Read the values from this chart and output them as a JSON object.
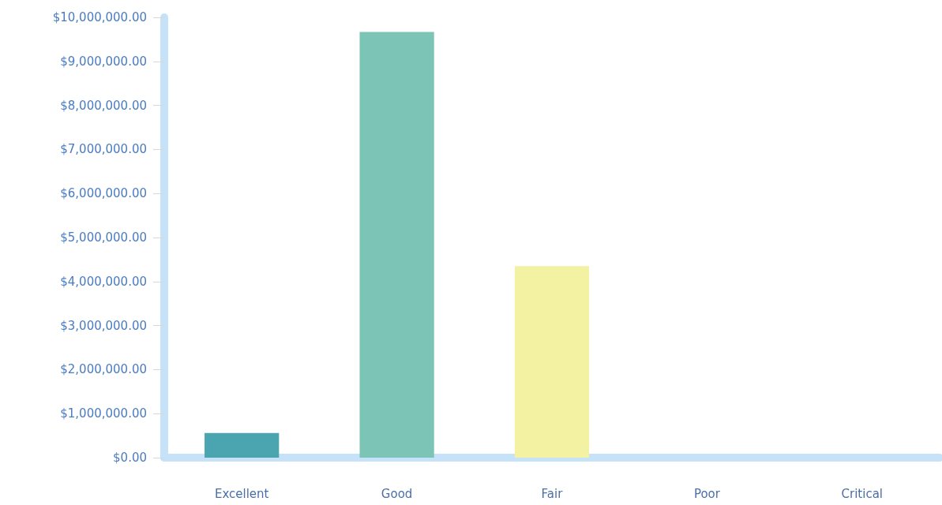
{
  "chart_data": {
    "type": "bar",
    "categories": [
      "Excellent",
      "Good",
      "Fair",
      "Poor",
      "Critical"
    ],
    "values": [
      560000,
      9670000,
      4350000,
      0,
      0
    ],
    "colors": [
      "#4aa5b0",
      "#7cc4b6",
      "#f2f2a2",
      "#9cc8e8",
      "#9cc8e8"
    ],
    "ylim": [
      0,
      10000000
    ],
    "yticks": [
      {
        "value": 0,
        "label": "$0.00"
      },
      {
        "value": 1000000,
        "label": "$1,000,000.00"
      },
      {
        "value": 2000000,
        "label": "$2,000,000.00"
      },
      {
        "value": 3000000,
        "label": "$3,000,000.00"
      },
      {
        "value": 4000000,
        "label": "$4,000,000.00"
      },
      {
        "value": 5000000,
        "label": "$5,000,000.00"
      },
      {
        "value": 6000000,
        "label": "$6,000,000.00"
      },
      {
        "value": 7000000,
        "label": "$7,000,000.00"
      },
      {
        "value": 8000000,
        "label": "$8,000,000.00"
      },
      {
        "value": 9000000,
        "label": "$9,000,000.00"
      },
      {
        "value": 10000000,
        "label": "$10,000,000.00"
      }
    ],
    "grid": false
  }
}
